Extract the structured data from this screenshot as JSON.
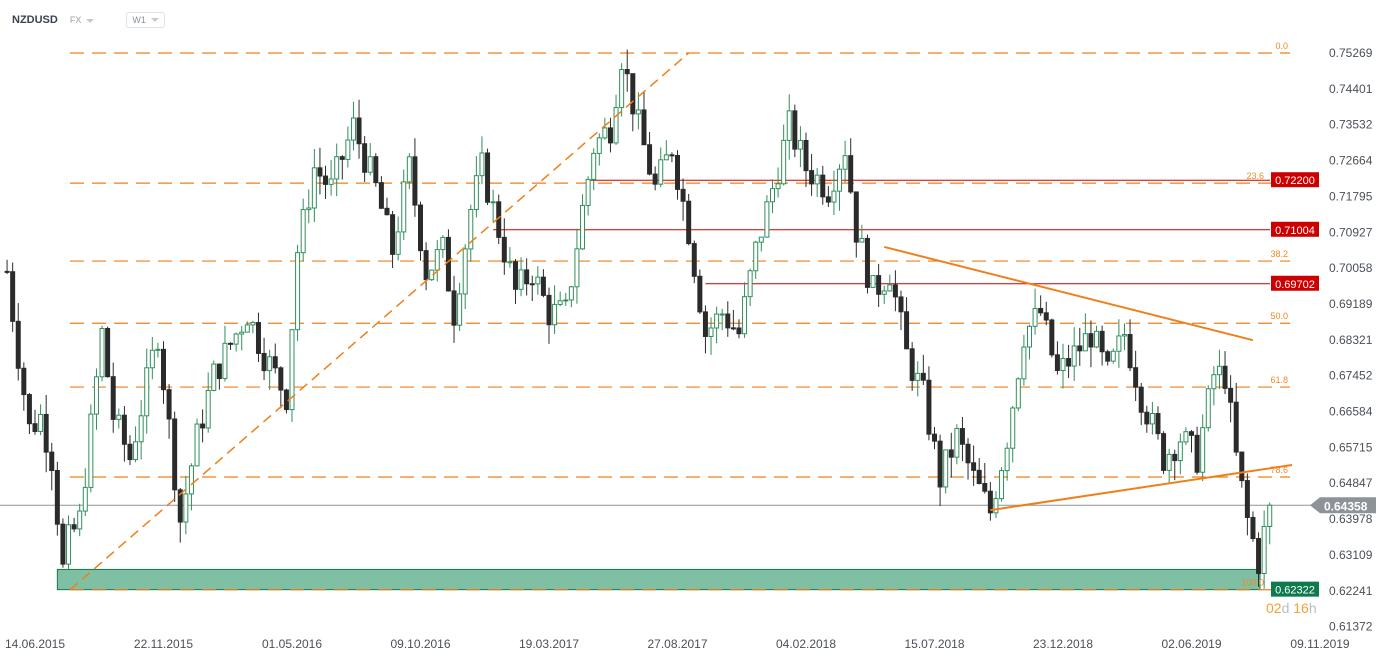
{
  "header": {
    "symbol": "NZDUSD",
    "market": "FX",
    "timeframe": "W1"
  },
  "countdown": {
    "days": "02",
    "d": "d",
    "hours": "16",
    "h": "h"
  },
  "colors": {
    "fib": "#f07f1a",
    "resistance": "#cc0000",
    "support_zone": "#7fbfa3",
    "support_label": "#0f7a4e",
    "bull": "#2f8f5b",
    "bear": "#2b2b2b",
    "price_label": "#8c9399"
  },
  "chart_data": {
    "type": "candlestick",
    "symbol": "NZDUSD",
    "timeframe": "W1",
    "y_ticks": [
      "0.75269",
      "0.74401",
      "0.73532",
      "0.72664",
      "0.71795",
      "0.70927",
      "0.70058",
      "0.69189",
      "0.68321",
      "0.67452",
      "0.66584",
      "0.65715",
      "0.64847",
      "0.63978",
      "0.63109",
      "0.62241",
      "0.61372"
    ],
    "ylim": [
      0.61372,
      0.75269
    ],
    "x_ticks": [
      "14.06.2015",
      "22.11.2015",
      "01.05.2016",
      "09.10.2016",
      "19.03.2017",
      "27.08.2017",
      "04.02.2018",
      "15.07.2018",
      "23.12.2018",
      "02.06.2019",
      "09.11.2019"
    ],
    "close_path": [
      [
        "2015-05-10",
        0.7
      ],
      [
        "2015-05-24",
        0.68
      ],
      [
        "2015-06-07",
        0.662
      ],
      [
        "2015-06-21",
        0.665
      ],
      [
        "2015-07-05",
        0.655
      ],
      [
        "2015-07-19",
        0.628
      ],
      [
        "2015-07-26",
        0.635
      ],
      [
        "2015-08-09",
        0.64
      ],
      [
        "2015-09-06",
        0.685
      ],
      [
        "2015-09-20",
        0.665
      ],
      [
        "2015-10-11",
        0.655
      ],
      [
        "2015-11-15",
        0.685
      ],
      [
        "2015-12-13",
        0.64
      ],
      [
        "2016-01-03",
        0.66
      ],
      [
        "2016-01-24",
        0.675
      ],
      [
        "2016-03-06",
        0.69
      ],
      [
        "2016-03-27",
        0.68
      ],
      [
        "2016-04-24",
        0.67
      ],
      [
        "2016-05-08",
        0.705
      ],
      [
        "2016-05-29",
        0.725
      ],
      [
        "2016-06-19",
        0.72
      ],
      [
        "2016-07-17",
        0.735
      ],
      [
        "2016-08-14",
        0.72
      ],
      [
        "2016-09-04",
        0.705
      ],
      [
        "2016-09-25",
        0.725
      ],
      [
        "2016-10-16",
        0.7
      ],
      [
        "2016-11-06",
        0.705
      ],
      [
        "2016-11-20",
        0.69
      ],
      [
        "2016-12-11",
        0.715
      ],
      [
        "2016-12-25",
        0.725
      ],
      [
        "2017-01-15",
        0.71
      ],
      [
        "2017-02-05",
        0.695
      ],
      [
        "2017-02-26",
        0.7
      ],
      [
        "2017-03-19",
        0.69
      ],
      [
        "2017-04-09",
        0.69
      ],
      [
        "2017-04-30",
        0.715
      ],
      [
        "2017-05-14",
        0.73
      ],
      [
        "2017-06-04",
        0.735
      ],
      [
        "2017-06-18",
        0.752
      ],
      [
        "2017-07-09",
        0.735
      ],
      [
        "2017-07-30",
        0.72
      ],
      [
        "2017-08-20",
        0.73
      ],
      [
        "2017-09-10",
        0.71
      ],
      [
        "2017-10-01",
        0.685
      ],
      [
        "2017-10-22",
        0.69
      ],
      [
        "2017-11-12",
        0.685
      ],
      [
        "2017-12-03",
        0.705
      ],
      [
        "2017-12-24",
        0.72
      ],
      [
        "2018-01-14",
        0.735
      ],
      [
        "2018-02-04",
        0.725
      ],
      [
        "2018-03-04",
        0.72
      ],
      [
        "2018-03-25",
        0.73
      ],
      [
        "2018-04-08",
        0.71
      ],
      [
        "2018-04-29",
        0.695
      ],
      [
        "2018-05-20",
        0.7
      ],
      [
        "2018-06-10",
        0.68
      ],
      [
        "2018-07-01",
        0.67
      ],
      [
        "2018-07-22",
        0.65
      ],
      [
        "2018-08-12",
        0.66
      ],
      [
        "2018-09-02",
        0.65
      ],
      [
        "2018-09-23",
        0.642
      ],
      [
        "2018-10-14",
        0.66
      ],
      [
        "2018-11-04",
        0.685
      ],
      [
        "2018-11-25",
        0.69
      ],
      [
        "2018-12-16",
        0.675
      ],
      [
        "2019-01-06",
        0.68
      ],
      [
        "2019-01-27",
        0.685
      ],
      [
        "2019-02-17",
        0.675
      ],
      [
        "2019-03-10",
        0.685
      ],
      [
        "2019-03-31",
        0.67
      ],
      [
        "2019-04-28",
        0.655
      ],
      [
        "2019-05-19",
        0.66
      ],
      [
        "2019-06-09",
        0.655
      ],
      [
        "2019-06-30",
        0.675
      ],
      [
        "2019-07-14",
        0.675
      ],
      [
        "2019-07-28",
        0.655
      ],
      [
        "2019-08-11",
        0.64
      ],
      [
        "2019-08-25",
        0.63
      ],
      [
        "2019-09-08",
        0.64358
      ]
    ],
    "current_price": "0.64358",
    "fibonacci": [
      {
        "level": "0.0",
        "price": 0.75269
      },
      {
        "level": "23.6",
        "price": 0.7213
      },
      {
        "level": "38.2",
        "price": 0.7025
      },
      {
        "level": "50.0",
        "price": 0.6875
      },
      {
        "level": "61.8",
        "price": 0.6721
      },
      {
        "level": "78.6",
        "price": 0.6504
      },
      {
        "level": "100.0",
        "price": 0.6232
      }
    ],
    "horizontal_levels": [
      {
        "label": "0.72200",
        "price": 0.722,
        "from": "2017-05-07"
      },
      {
        "label": "0.71004",
        "price": 0.71004,
        "from": "2017-01-08"
      },
      {
        "label": "0.69702",
        "price": 0.69702,
        "from": "2017-10-01"
      }
    ],
    "support_zone": {
      "label": "0.62322",
      "low": 0.62322,
      "high": 0.6281,
      "from": "2015-07-12"
    },
    "trendlines": [
      {
        "style": "dashed",
        "from": [
          "2015-07-28",
          0.6232
        ],
        "to": [
          "2017-09-10",
          0.7527
        ]
      },
      {
        "style": "solid",
        "from": [
          "2018-05-13",
          0.7059
        ],
        "to": [
          "2019-08-18",
          0.6834
        ]
      },
      {
        "style": "solid",
        "from": [
          "2018-09-23",
          0.6424
        ],
        "to": [
          "2019-10-06",
          0.6533
        ]
      }
    ]
  }
}
